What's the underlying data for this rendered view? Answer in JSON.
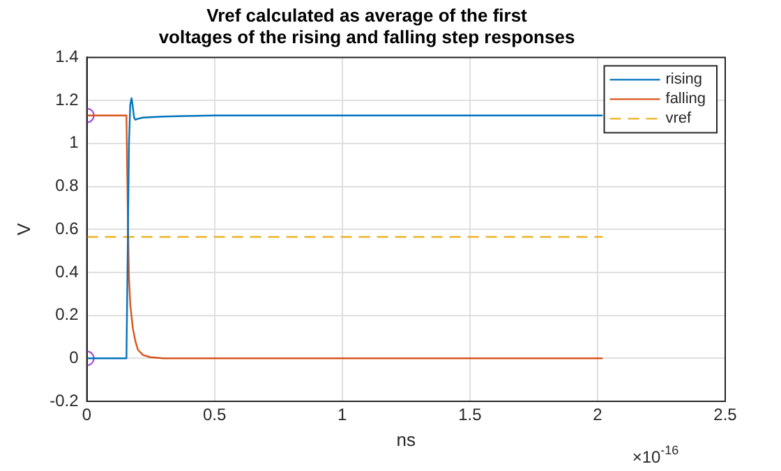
{
  "chart_data": {
    "type": "line",
    "title": "Vref calculated as average of the first\nvoltages of the rising and falling step responses",
    "xlabel": "ns",
    "ylabel": "V",
    "xlim": [
      0,
      2.5
    ],
    "xticks": [
      0,
      0.5,
      1,
      1.5,
      2,
      2.5
    ],
    "ylim": [
      -0.2,
      1.4
    ],
    "yticks": [
      -0.2,
      0,
      0.2,
      0.4,
      0.6,
      0.8,
      1,
      1.2,
      1.4
    ],
    "grid": true,
    "legend": "top right",
    "marker": "none",
    "annotations": [
      "×10$^{-16}$"
    ],
    "series": [
      {
        "name": "rising",
        "color": "#0072bd",
        "x": [
          0,
          0.155,
          0.16,
          0.165,
          0.17,
          0.175,
          0.18,
          0.185,
          0.19,
          0.2,
          0.22,
          0.3,
          0.5,
          1,
          1.5,
          2.02
        ],
        "values": [
          0,
          0,
          0.5,
          1.0,
          1.18,
          1.21,
          1.17,
          1.12,
          1.11,
          1.115,
          1.12,
          1.125,
          1.13,
          1.13,
          1.13,
          1.13
        ]
      },
      {
        "name": "falling",
        "color": "#d95319",
        "x": [
          0,
          0.155,
          0.16,
          0.165,
          0.17,
          0.18,
          0.19,
          0.2,
          0.22,
          0.25,
          0.3,
          0.5,
          1,
          1.5,
          2.02
        ],
        "values": [
          1.13,
          1.13,
          0.7,
          0.37,
          0.25,
          0.14,
          0.08,
          0.04,
          0.015,
          0.005,
          0,
          0,
          0,
          0,
          0
        ]
      },
      {
        "name": "vref",
        "color": "#edb120",
        "type": "line",
        "line_style": "dashed",
        "x": [
          0,
          2.02
        ],
        "values": [
          0.565,
          0.565
        ]
      },
      {
        "type": "scatter",
        "marker": "circle",
        "color": "#a040e0",
        "x": [
          0,
          0
        ],
        "values": [
          1.13,
          0
        ]
      }
    ]
  }
}
